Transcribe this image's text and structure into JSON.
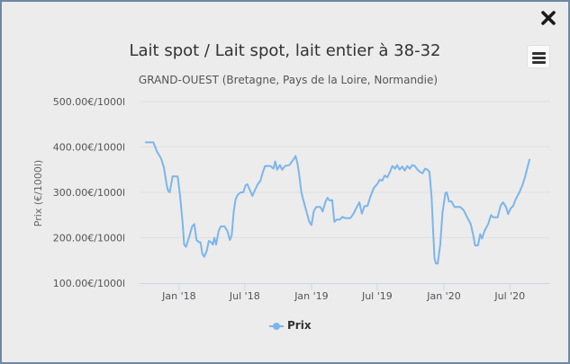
{
  "window": {
    "close_icon": "close-x-icon",
    "menu_icon": "hamburger-menu-icon"
  },
  "colors": {
    "series": "#7cb5ec",
    "background": "#ececec",
    "border": "#6e88a3"
  },
  "chart_data": {
    "type": "line",
    "title": "Lait spot / Lait spot, lait entier à 38-32",
    "subtitle": "GRAND-OUEST (Bretagne, Pays de la Loire, Normandie)",
    "ylabel": "Prix (€/1000l)",
    "xlabel": "",
    "ylim": [
      100,
      500
    ],
    "yticks": [
      100,
      200,
      300,
      400,
      500
    ],
    "ytick_labels": [
      "100.00€/1000l",
      "200.00€/1000l",
      "300.00€/1000l",
      "400.00€/1000l",
      "500.00€/1000l"
    ],
    "xlim": [
      "2017-09-14",
      "2020-10-20"
    ],
    "xticks": [
      "2018-01-01",
      "2018-07-01",
      "2019-01-01",
      "2019-07-01",
      "2020-01-01",
      "2020-07-01"
    ],
    "xtick_labels": [
      "Jan '18",
      "Jul '18",
      "Jan '19",
      "Jul '19",
      "Jan '20",
      "Jul '20"
    ],
    "grid": true,
    "legend_position": "bottom-center",
    "series": [
      {
        "name": "Prix",
        "color": "#7cb5ec",
        "points": [
          [
            "2017-10-01",
            410
          ],
          [
            "2017-10-22",
            410
          ],
          [
            "2017-11-01",
            390
          ],
          [
            "2017-11-12",
            375
          ],
          [
            "2017-11-20",
            355
          ],
          [
            "2017-11-27",
            320
          ],
          [
            "2017-12-01",
            305
          ],
          [
            "2017-12-06",
            300
          ],
          [
            "2017-12-14",
            335
          ],
          [
            "2017-12-28",
            335
          ],
          [
            "2018-01-04",
            290
          ],
          [
            "2018-01-11",
            230
          ],
          [
            "2018-01-15",
            185
          ],
          [
            "2018-01-20",
            180
          ],
          [
            "2018-01-28",
            200
          ],
          [
            "2018-02-06",
            225
          ],
          [
            "2018-02-12",
            230
          ],
          [
            "2018-02-18",
            195
          ],
          [
            "2018-02-25",
            190
          ],
          [
            "2018-03-01",
            190
          ],
          [
            "2018-03-06",
            165
          ],
          [
            "2018-03-11",
            158
          ],
          [
            "2018-03-18",
            170
          ],
          [
            "2018-03-24",
            193
          ],
          [
            "2018-03-30",
            190
          ],
          [
            "2018-04-04",
            185
          ],
          [
            "2018-04-08",
            200
          ],
          [
            "2018-04-13",
            185
          ],
          [
            "2018-04-20",
            215
          ],
          [
            "2018-04-26",
            225
          ],
          [
            "2018-05-06",
            225
          ],
          [
            "2018-05-14",
            215
          ],
          [
            "2018-05-21",
            195
          ],
          [
            "2018-05-26",
            205
          ],
          [
            "2018-06-01",
            260
          ],
          [
            "2018-06-06",
            285
          ],
          [
            "2018-06-12",
            295
          ],
          [
            "2018-06-20",
            300
          ],
          [
            "2018-06-27",
            300
          ],
          [
            "2018-07-03",
            315
          ],
          [
            "2018-07-08",
            318
          ],
          [
            "2018-07-15",
            305
          ],
          [
            "2018-07-22",
            292
          ],
          [
            "2018-07-29",
            305
          ],
          [
            "2018-08-06",
            318
          ],
          [
            "2018-08-13",
            325
          ],
          [
            "2018-08-20",
            345
          ],
          [
            "2018-08-26",
            358
          ],
          [
            "2018-09-10",
            358
          ],
          [
            "2018-09-18",
            352
          ],
          [
            "2018-09-23",
            368
          ],
          [
            "2018-09-28",
            350
          ],
          [
            "2018-10-06",
            360
          ],
          [
            "2018-10-12",
            350
          ],
          [
            "2018-10-20",
            358
          ],
          [
            "2018-11-01",
            360
          ],
          [
            "2018-11-12",
            372
          ],
          [
            "2018-11-18",
            380
          ],
          [
            "2018-11-23",
            365
          ],
          [
            "2018-11-28",
            340
          ],
          [
            "2018-12-04",
            300
          ],
          [
            "2018-12-12",
            275
          ],
          [
            "2018-12-19",
            255
          ],
          [
            "2018-12-26",
            235
          ],
          [
            "2019-01-01",
            228
          ],
          [
            "2019-01-07",
            258
          ],
          [
            "2019-01-14",
            268
          ],
          [
            "2019-01-25",
            268
          ],
          [
            "2019-02-01",
            258
          ],
          [
            "2019-02-08",
            278
          ],
          [
            "2019-02-14",
            288
          ],
          [
            "2019-02-20",
            282
          ],
          [
            "2019-02-27",
            283
          ],
          [
            "2019-03-05",
            235
          ],
          [
            "2019-03-12",
            240
          ],
          [
            "2019-03-20",
            240
          ],
          [
            "2019-03-27",
            246
          ],
          [
            "2019-04-05",
            243
          ],
          [
            "2019-04-18",
            243
          ],
          [
            "2019-04-26",
            252
          ],
          [
            "2019-05-06",
            268
          ],
          [
            "2019-05-13",
            278
          ],
          [
            "2019-05-20",
            253
          ],
          [
            "2019-05-27",
            270
          ],
          [
            "2019-06-04",
            270
          ],
          [
            "2019-06-12",
            290
          ],
          [
            "2019-06-22",
            310
          ],
          [
            "2019-07-01",
            318
          ],
          [
            "2019-07-08",
            328
          ],
          [
            "2019-07-15",
            326
          ],
          [
            "2019-07-22",
            337
          ],
          [
            "2019-07-29",
            333
          ],
          [
            "2019-08-05",
            345
          ],
          [
            "2019-08-12",
            358
          ],
          [
            "2019-08-19",
            352
          ],
          [
            "2019-08-25",
            360
          ],
          [
            "2019-09-01",
            350
          ],
          [
            "2019-09-08",
            357
          ],
          [
            "2019-09-15",
            348
          ],
          [
            "2019-09-22",
            358
          ],
          [
            "2019-09-29",
            352
          ],
          [
            "2019-10-06",
            360
          ],
          [
            "2019-10-13",
            358
          ],
          [
            "2019-10-20",
            350
          ],
          [
            "2019-10-27",
            345
          ],
          [
            "2019-11-03",
            342
          ],
          [
            "2019-11-10",
            352
          ],
          [
            "2019-11-17",
            350
          ],
          [
            "2019-11-22",
            345
          ],
          [
            "2019-11-28",
            290
          ],
          [
            "2019-12-02",
            220
          ],
          [
            "2019-12-06",
            155
          ],
          [
            "2019-12-10",
            143
          ],
          [
            "2019-12-15",
            143
          ],
          [
            "2019-12-22",
            185
          ],
          [
            "2019-12-28",
            255
          ],
          [
            "2020-01-05",
            298
          ],
          [
            "2020-01-09",
            300
          ],
          [
            "2020-01-15",
            280
          ],
          [
            "2020-01-22",
            280
          ],
          [
            "2020-01-30",
            268
          ],
          [
            "2020-02-15",
            268
          ],
          [
            "2020-02-25",
            260
          ],
          [
            "2020-03-05",
            245
          ],
          [
            "2020-03-15",
            230
          ],
          [
            "2020-03-22",
            205
          ],
          [
            "2020-03-27",
            183
          ],
          [
            "2020-04-04",
            183
          ],
          [
            "2020-04-10",
            208
          ],
          [
            "2020-04-15",
            198
          ],
          [
            "2020-04-22",
            215
          ],
          [
            "2020-05-02",
            230
          ],
          [
            "2020-05-10",
            250
          ],
          [
            "2020-05-16",
            245
          ],
          [
            "2020-05-28",
            245
          ],
          [
            "2020-06-05",
            270
          ],
          [
            "2020-06-12",
            278
          ],
          [
            "2020-06-20",
            268
          ],
          [
            "2020-06-26",
            252
          ],
          [
            "2020-07-03",
            265
          ],
          [
            "2020-07-10",
            270
          ],
          [
            "2020-07-17",
            285
          ],
          [
            "2020-07-27",
            300
          ],
          [
            "2020-08-04",
            315
          ],
          [
            "2020-08-12",
            335
          ],
          [
            "2020-08-20",
            360
          ],
          [
            "2020-08-24",
            372
          ]
        ]
      }
    ]
  }
}
